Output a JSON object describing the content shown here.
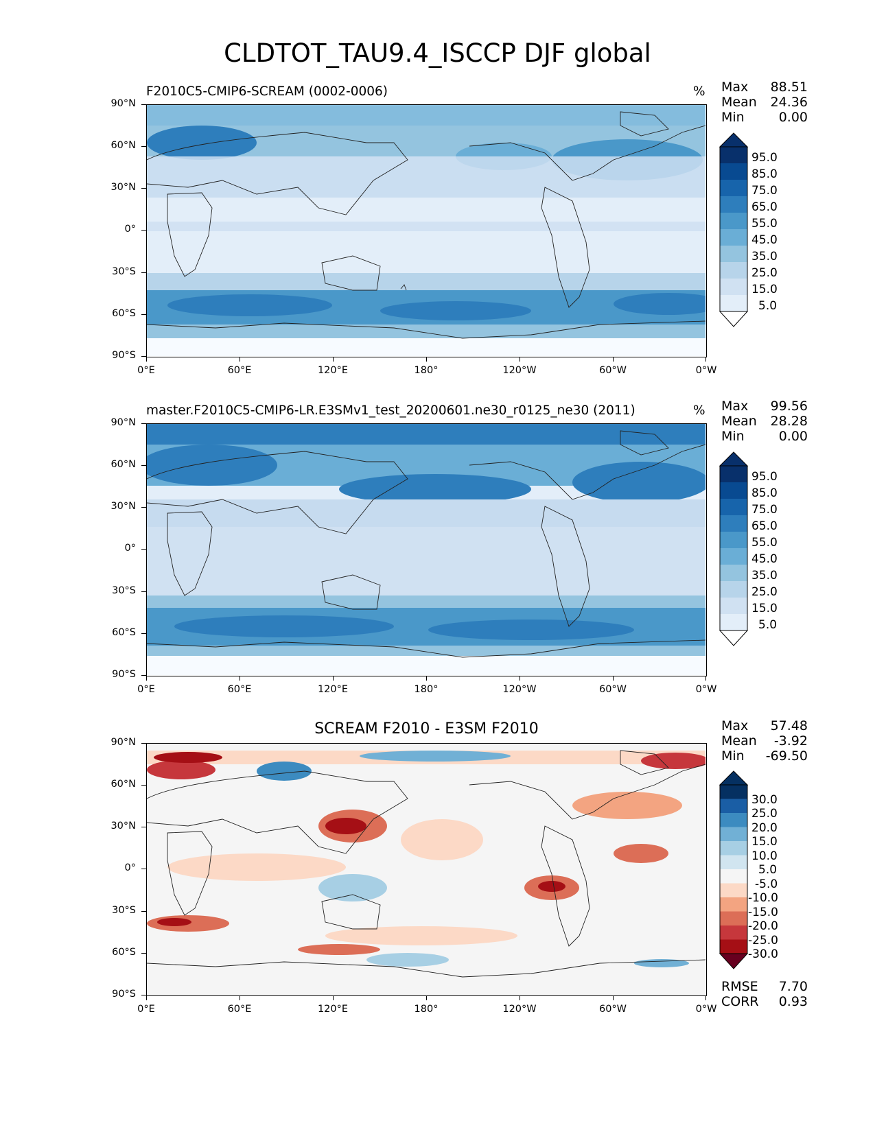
{
  "figure_title": "CLDTOT_TAU9.4_ISCCP DJF global",
  "colors": {
    "blues": [
      "#f7fbff",
      "#e3eef9",
      "#d0e1f2",
      "#b7d4ea",
      "#94c4df",
      "#6aaed6",
      "#4a98c9",
      "#2e7ebc",
      "#1764ab",
      "#084a91",
      "#08306b"
    ],
    "rdbu": [
      "#67001f",
      "#a50f15",
      "#c6373c",
      "#dc6e57",
      "#f3a481",
      "#fcd9c6",
      "#f5f5f5",
      "#d1e5f0",
      "#a7cfe4",
      "#71b0d5",
      "#3c8bc0",
      "#1a5ea5",
      "#053061"
    ]
  },
  "axes": {
    "y_ticks": [
      "90°N",
      "60°N",
      "30°N",
      "0°",
      "30°S",
      "60°S",
      "90°S"
    ],
    "x_ticks": [
      "0°E",
      "60°E",
      "120°E",
      "180°",
      "120°W",
      "60°W",
      "0°W"
    ]
  },
  "panels": [
    {
      "title": "F2010C5-CMIP6-SCREAM (0002-0006)",
      "units": "%",
      "stats": {
        "max_label": "Max",
        "max": "88.51",
        "mean_label": "Mean",
        "mean": "24.36",
        "min_label": "Min",
        "min": "0.00"
      },
      "colorbar": {
        "levels": [
          "95.0",
          "85.0",
          "75.0",
          "65.0",
          "55.0",
          "45.0",
          "35.0",
          "25.0",
          "15.0",
          "5.0"
        ]
      }
    },
    {
      "title": "master.F2010C5-CMIP6-LR.E3SMv1_test_20200601.ne30_r0125_ne30 (2011)",
      "units": "%",
      "stats": {
        "max_label": "Max",
        "max": "99.56",
        "mean_label": "Mean",
        "mean": "28.28",
        "min_label": "Min",
        "min": "0.00"
      },
      "colorbar": {
        "levels": [
          "95.0",
          "85.0",
          "75.0",
          "65.0",
          "55.0",
          "45.0",
          "35.0",
          "25.0",
          "15.0",
          "5.0"
        ]
      }
    },
    {
      "title": "SCREAM F2010 - E3SM F2010",
      "units": "",
      "stats": {
        "max_label": "Max",
        "max": "57.48",
        "mean_label": "Mean",
        "mean": "-3.92",
        "min_label": "Min",
        "min": "-69.50"
      },
      "colorbar": {
        "levels": [
          "30.0",
          "25.0",
          "20.0",
          "15.0",
          "10.0",
          "5.0",
          "-5.0",
          "-10.0",
          "-15.0",
          "-20.0",
          "-25.0",
          "-30.0"
        ]
      },
      "metrics": {
        "rmse_label": "RMSE",
        "rmse": "7.70",
        "corr_label": "CORR",
        "corr": "0.93"
      }
    }
  ]
}
